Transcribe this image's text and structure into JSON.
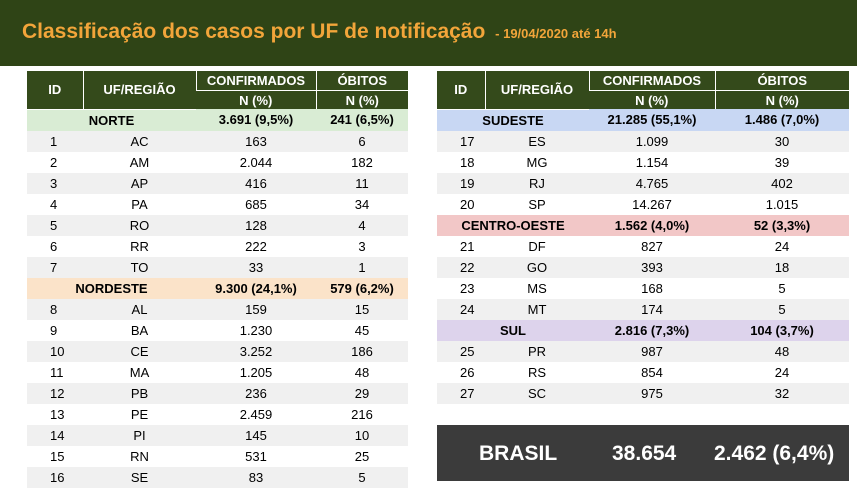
{
  "header": {
    "title": "Classificação dos casos por UF de notificação",
    "subtitle": "- 19/04/2020 até 14h"
  },
  "columns": {
    "id": "ID",
    "uf": "UF/REGIÃO",
    "confirmed": "CONFIRMADOS",
    "deaths": "ÓBITOS",
    "unit": "N (%)"
  },
  "left_table": [
    {
      "type": "region",
      "name": "NORTE",
      "confirmed": "3.691 (9,5%)",
      "deaths": "241 (6,5%)",
      "tone": "norte"
    },
    {
      "type": "state",
      "id": "1",
      "uf": "AC",
      "confirmed": "163",
      "deaths": "6"
    },
    {
      "type": "state",
      "id": "2",
      "uf": "AM",
      "confirmed": "2.044",
      "deaths": "182"
    },
    {
      "type": "state",
      "id": "3",
      "uf": "AP",
      "confirmed": "416",
      "deaths": "11"
    },
    {
      "type": "state",
      "id": "4",
      "uf": "PA",
      "confirmed": "685",
      "deaths": "34"
    },
    {
      "type": "state",
      "id": "5",
      "uf": "RO",
      "confirmed": "128",
      "deaths": "4"
    },
    {
      "type": "state",
      "id": "6",
      "uf": "RR",
      "confirmed": "222",
      "deaths": "3"
    },
    {
      "type": "state",
      "id": "7",
      "uf": "TO",
      "confirmed": "33",
      "deaths": "1"
    },
    {
      "type": "region",
      "name": "NORDESTE",
      "confirmed": "9.300 (24,1%)",
      "deaths": "579 (6,2%)",
      "tone": "nordeste"
    },
    {
      "type": "state",
      "id": "8",
      "uf": "AL",
      "confirmed": "159",
      "deaths": "15"
    },
    {
      "type": "state",
      "id": "9",
      "uf": "BA",
      "confirmed": "1.230",
      "deaths": "45"
    },
    {
      "type": "state",
      "id": "10",
      "uf": "CE",
      "confirmed": "3.252",
      "deaths": "186"
    },
    {
      "type": "state",
      "id": "11",
      "uf": "MA",
      "confirmed": "1.205",
      "deaths": "48"
    },
    {
      "type": "state",
      "id": "12",
      "uf": "PB",
      "confirmed": "236",
      "deaths": "29"
    },
    {
      "type": "state",
      "id": "13",
      "uf": "PE",
      "confirmed": "2.459",
      "deaths": "216"
    },
    {
      "type": "state",
      "id": "14",
      "uf": "PI",
      "confirmed": "145",
      "deaths": "10"
    },
    {
      "type": "state",
      "id": "15",
      "uf": "RN",
      "confirmed": "531",
      "deaths": "25"
    },
    {
      "type": "state",
      "id": "16",
      "uf": "SE",
      "confirmed": "83",
      "deaths": "5"
    }
  ],
  "right_table": [
    {
      "type": "region",
      "name": "SUDESTE",
      "confirmed": "21.285 (55,1%)",
      "deaths": "1.486 (7,0%)",
      "tone": "sudeste"
    },
    {
      "type": "state",
      "id": "17",
      "uf": "ES",
      "confirmed": "1.099",
      "deaths": "30"
    },
    {
      "type": "state",
      "id": "18",
      "uf": "MG",
      "confirmed": "1.154",
      "deaths": "39"
    },
    {
      "type": "state",
      "id": "19",
      "uf": "RJ",
      "confirmed": "4.765",
      "deaths": "402"
    },
    {
      "type": "state",
      "id": "20",
      "uf": "SP",
      "confirmed": "14.267",
      "deaths": "1.015"
    },
    {
      "type": "region",
      "name": "CENTRO-OESTE",
      "confirmed": "1.562 (4,0%)",
      "deaths": "52 (3,3%)",
      "tone": "centro"
    },
    {
      "type": "state",
      "id": "21",
      "uf": "DF",
      "confirmed": "827",
      "deaths": "24"
    },
    {
      "type": "state",
      "id": "22",
      "uf": "GO",
      "confirmed": "393",
      "deaths": "18"
    },
    {
      "type": "state",
      "id": "23",
      "uf": "MS",
      "confirmed": "168",
      "deaths": "5"
    },
    {
      "type": "state",
      "id": "24",
      "uf": "MT",
      "confirmed": "174",
      "deaths": "5"
    },
    {
      "type": "region",
      "name": "SUL",
      "confirmed": "2.816 (7,3%)",
      "deaths": "104 (3,7%)",
      "tone": "sul"
    },
    {
      "type": "state",
      "id": "25",
      "uf": "PR",
      "confirmed": "987",
      "deaths": "48"
    },
    {
      "type": "state",
      "id": "26",
      "uf": "RS",
      "confirmed": "854",
      "deaths": "24"
    },
    {
      "type": "state",
      "id": "27",
      "uf": "SC",
      "confirmed": "975",
      "deaths": "32"
    }
  ],
  "total": {
    "label": "BRASIL",
    "confirmed": "38.654",
    "deaths": "2.462 (6,4%)"
  },
  "colors": {
    "banner": "#2f4416",
    "title": "#f2a53a",
    "table_header": "#344a1b",
    "norte": "#d9ecd4",
    "nordeste": "#fbe3c9",
    "sudeste": "#c8d7f3",
    "centro_oeste": "#f2c7c7",
    "sul": "#ddd3ec",
    "total_box": "#3b3b3b"
  }
}
